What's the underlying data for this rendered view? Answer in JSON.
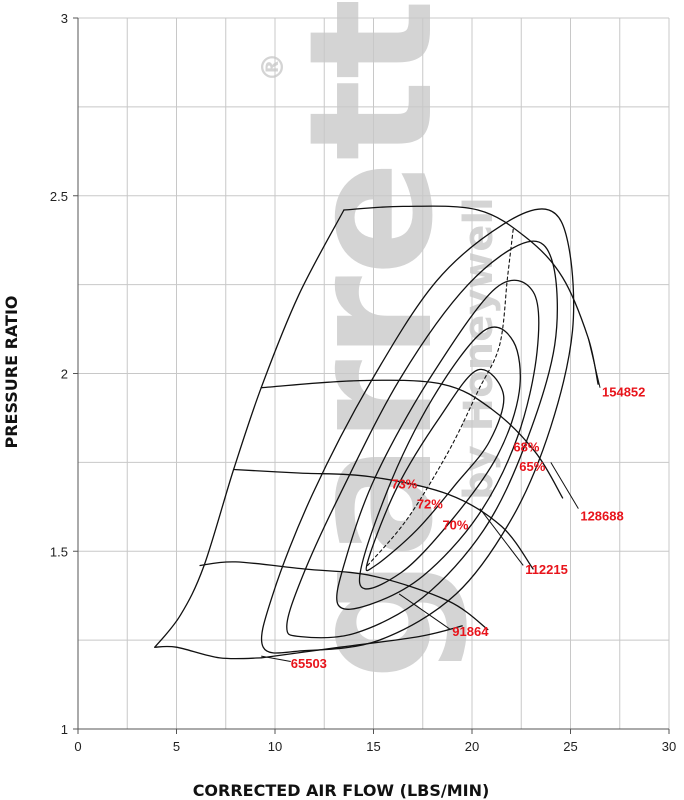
{
  "chart_data": {
    "type": "line",
    "title": "",
    "xlabel": "CORRECTED AIR FLOW (LBS/MIN)",
    "ylabel": "PRESSURE RATIO",
    "xlim": [
      0,
      30
    ],
    "ylim": [
      1,
      3
    ],
    "x_ticks": [
      "0",
      "5",
      "10",
      "15",
      "20",
      "25",
      "30"
    ],
    "y_ticks": [
      "1",
      "1.5",
      "2",
      "2.5",
      "3"
    ],
    "grid": true,
    "watermark": {
      "brand": "Garrett",
      "tagline": "by Honeywell",
      "mark": "®",
      "color": "#d4d4d4"
    },
    "label_color": "#e8141b",
    "speed_lines": [
      {
        "name": "65503",
        "points": [
          [
            9.3,
            1.2
          ],
          [
            13.3,
            1.23
          ],
          [
            17.3,
            1.26
          ],
          [
            19.5,
            1.29
          ]
        ]
      },
      {
        "name": "91864",
        "points": [
          [
            6.2,
            1.46
          ],
          [
            8.0,
            1.47
          ],
          [
            11.5,
            1.45
          ],
          [
            15.0,
            1.43
          ],
          [
            18.8,
            1.36
          ],
          [
            20.8,
            1.28
          ]
        ]
      },
      {
        "name": "112215",
        "points": [
          [
            7.9,
            1.73
          ],
          [
            11.2,
            1.72
          ],
          [
            14.8,
            1.71
          ],
          [
            18.8,
            1.66
          ],
          [
            21.5,
            1.57
          ],
          [
            23.1,
            1.45
          ]
        ]
      },
      {
        "name": "128688",
        "points": [
          [
            9.3,
            1.96
          ],
          [
            14.3,
            1.98
          ],
          [
            18.5,
            1.97
          ],
          [
            21.0,
            1.9
          ],
          [
            23.2,
            1.78
          ],
          [
            24.6,
            1.65
          ]
        ]
      },
      {
        "name": "154852",
        "points": [
          [
            13.5,
            2.46
          ],
          [
            16.5,
            2.47
          ],
          [
            20.3,
            2.46
          ],
          [
            22.8,
            2.38
          ],
          [
            24.6,
            2.27
          ],
          [
            25.9,
            2.1
          ],
          [
            26.4,
            1.97
          ]
        ]
      }
    ],
    "surge_line": [
      [
        3.9,
        1.23
      ],
      [
        5.2,
        1.32
      ],
      [
        6.4,
        1.46
      ],
      [
        7.9,
        1.73
      ],
      [
        9.3,
        1.96
      ],
      [
        11.2,
        2.22
      ],
      [
        13.5,
        2.46
      ]
    ],
    "choke_line": [
      [
        9.3,
        1.2
      ],
      [
        7.2,
        1.2
      ],
      [
        5.0,
        1.23
      ],
      [
        3.9,
        1.23
      ]
    ],
    "efficiency_islands": [
      {
        "name": "73%",
        "points": [
          [
            14.7,
            1.47
          ],
          [
            16.2,
            1.68
          ],
          [
            18.4,
            1.88
          ],
          [
            20.3,
            2.01
          ],
          [
            21.6,
            1.94
          ],
          [
            20.9,
            1.81
          ],
          [
            19.2,
            1.69
          ],
          [
            17.2,
            1.56
          ],
          [
            15.1,
            1.46
          ]
        ]
      },
      {
        "name": "72%",
        "points": [
          [
            14.3,
            1.41
          ],
          [
            15.7,
            1.67
          ],
          [
            18.0,
            1.93
          ],
          [
            20.6,
            2.12
          ],
          [
            22.1,
            2.09
          ],
          [
            22.4,
            1.95
          ],
          [
            21.3,
            1.77
          ],
          [
            19.0,
            1.59
          ],
          [
            16.4,
            1.44
          ]
        ]
      },
      {
        "name": "70%",
        "points": [
          [
            13.2,
            1.35
          ],
          [
            13.6,
            1.48
          ],
          [
            15.1,
            1.71
          ],
          [
            17.9,
            1.99
          ],
          [
            21.2,
            2.24
          ],
          [
            23.1,
            2.23
          ],
          [
            23.3,
            2.06
          ],
          [
            22.3,
            1.82
          ],
          [
            20.3,
            1.6
          ],
          [
            17.5,
            1.43
          ],
          [
            14.8,
            1.35
          ]
        ]
      },
      {
        "name": "68%",
        "points": [
          [
            10.6,
            1.29
          ],
          [
            11.4,
            1.43
          ],
          [
            13.3,
            1.66
          ],
          [
            16.4,
            1.99
          ],
          [
            19.8,
            2.25
          ],
          [
            22.8,
            2.37
          ],
          [
            24.1,
            2.31
          ],
          [
            24.2,
            2.08
          ],
          [
            22.7,
            1.8
          ],
          [
            20.6,
            1.56
          ],
          [
            17.5,
            1.37
          ],
          [
            14.1,
            1.27
          ],
          [
            11.3,
            1.26
          ]
        ]
      },
      {
        "name": "65%",
        "points": [
          [
            9.4,
            1.23
          ],
          [
            9.9,
            1.38
          ],
          [
            11.9,
            1.66
          ],
          [
            14.9,
            1.98
          ],
          [
            18.2,
            2.26
          ],
          [
            21.6,
            2.42
          ],
          [
            23.9,
            2.46
          ],
          [
            24.9,
            2.36
          ],
          [
            25.1,
            2.12
          ],
          [
            24.0,
            1.85
          ],
          [
            22.1,
            1.6
          ],
          [
            19.2,
            1.38
          ],
          [
            15.3,
            1.25
          ],
          [
            11.4,
            1.22
          ]
        ]
      }
    ],
    "peak_efficiency_line": [
      [
        14.7,
        1.46
      ],
      [
        16.7,
        1.59
      ],
      [
        18.8,
        1.78
      ],
      [
        20.3,
        1.95
      ],
      [
        21.4,
        2.08
      ],
      [
        21.8,
        2.27
      ],
      [
        22.1,
        2.41
      ]
    ],
    "labels": [
      {
        "text": "65503",
        "x": 10.8,
        "y": 1.185
      },
      {
        "text": "91864",
        "x": 19.0,
        "y": 1.275
      },
      {
        "text": "112215",
        "x": 22.7,
        "y": 1.45
      },
      {
        "text": "128688",
        "x": 25.5,
        "y": 1.6
      },
      {
        "text": "154852",
        "x": 26.6,
        "y": 1.95
      },
      {
        "text": "73%",
        "x": 15.9,
        "y": 1.69
      },
      {
        "text": "72%",
        "x": 17.2,
        "y": 1.635
      },
      {
        "text": "70%",
        "x": 18.5,
        "y": 1.575
      },
      {
        "text": "68%",
        "x": 22.1,
        "y": 1.795
      },
      {
        "text": "65%",
        "x": 22.4,
        "y": 1.74
      }
    ]
  }
}
